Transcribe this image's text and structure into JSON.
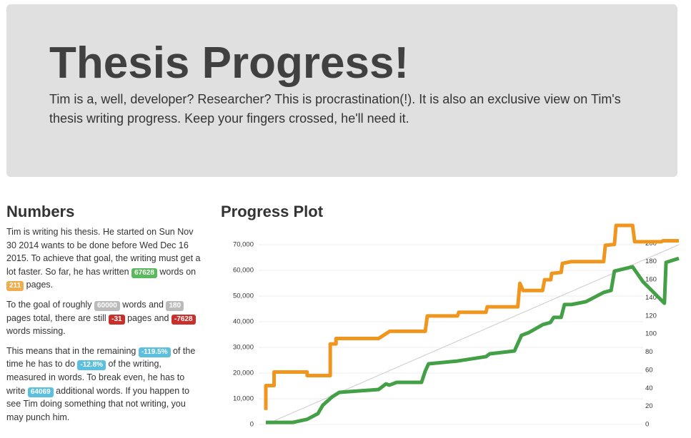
{
  "header": {
    "title": "Thesis Progress!",
    "text": "Tim is a, well, developer? Researcher? This is procrastination(!). It is also an exclusive view on Tim's thesis writing progress. Keep your fingers crossed, he'll need it."
  },
  "numbers": {
    "heading": "Numbers",
    "paragraphs": [
      {
        "parts": [
          "Tim is writing his thesis. He started on Sun Nov 30 2014 wants to be done before Wed Dec 16 2015. To achieve that goal, the writing must get a lot faster. So far, he has written ",
          {
            "badge": "67628",
            "color": "#5cb85c"
          },
          " words on ",
          {
            "badge": "211",
            "color": "#f0ad4e"
          },
          " pages."
        ]
      },
      {
        "parts": [
          "To the goal of roughly ",
          {
            "badge": "60000",
            "color": "#bbbbbb"
          },
          " words and ",
          {
            "badge": "180",
            "color": "#bbbbbb"
          },
          " pages total, there are still ",
          {
            "badge": "-31",
            "color": "#c9302c"
          },
          " pages and ",
          {
            "badge": "-7628",
            "color": "#c9302c"
          },
          " words missing."
        ]
      },
      {
        "parts": [
          "This means that in the remaining ",
          {
            "badge": "-119.5%",
            "color": "#5bc0de"
          },
          " of the time he has to do ",
          {
            "badge": "-12.8%",
            "color": "#5bc0de"
          },
          " of the writing, measured in words. To break even, he has to write ",
          {
            "badge": "64069",
            "color": "#5bc0de"
          },
          " additional words. If you happen to see Tim doing something that not writing, you may punch him."
        ]
      }
    ]
  },
  "plot": {
    "heading": "Progress Plot",
    "chart_data": {
      "type": "line",
      "grid": true,
      "xlim": [
        0,
        100
      ],
      "ylim": [
        0,
        77500
      ],
      "y2lim": [
        0,
        220
      ],
      "yticks": [
        0,
        {
          "value": 10000,
          "label": "10,000"
        },
        {
          "value": 20000,
          "label": "20,000"
        },
        {
          "value": 30000,
          "label": "30,000"
        },
        {
          "value": 40000,
          "label": "40,000"
        },
        {
          "value": 50000,
          "label": "50,000"
        },
        {
          "value": 60000,
          "label": "60,000"
        },
        {
          "value": 70000,
          "label": "70,000"
        }
      ],
      "y2ticks": [
        0,
        20,
        40,
        60,
        80,
        100,
        120,
        140,
        160,
        180,
        200
      ],
      "series": [
        {
          "color": "#cccccc",
          "width": 1,
          "x": [
            0,
            100
          ],
          "values": [
            0,
            70000
          ]
        },
        {
          "color": "#f0961e",
          "width": 5,
          "axis": "y2",
          "x": [
            0,
            0,
            2,
            2,
            10,
            10,
            15.6,
            15.6,
            17,
            17,
            27.3,
            30,
            38.6,
            39.1,
            46.4,
            46.7,
            53.3,
            53.6,
            61,
            61.5,
            62.3,
            67,
            67.5,
            69,
            69.2,
            71.5,
            71.8,
            74,
            81.8,
            82.2,
            84.4,
            84.8,
            88.8,
            89.3,
            95.7,
            96.2,
            100
          ],
          "values": [
            16,
            43,
            43,
            58,
            58,
            54,
            54,
            89,
            89,
            95,
            95,
            103,
            103,
            120,
            120,
            124,
            124,
            130,
            130,
            156,
            148,
            148,
            160,
            160,
            167,
            168,
            178,
            180,
            180,
            198,
            199,
            220,
            220,
            202,
            202,
            203,
            203
          ]
        },
        {
          "color": "#43a046",
          "width": 5,
          "x": [
            0,
            6.6,
            10,
            12.6,
            13.8,
            16.1,
            17.8,
            27.3,
            29.1,
            29.9,
            31.7,
            37.7,
            38.6,
            39.4,
            46.4,
            53.3,
            54.2,
            60.2,
            61.9,
            63.7,
            67.1,
            68.9,
            69.7,
            71.5,
            72.3,
            74,
            77.5,
            81.8,
            83.6,
            84.4,
            88.8,
            91.3,
            96.5,
            96.9,
            100
          ],
          "values": [
            800,
            800,
            2000,
            4200,
            7500,
            10800,
            12500,
            13600,
            15800,
            15300,
            16400,
            16400,
            20800,
            23600,
            24700,
            26400,
            27500,
            28600,
            34700,
            35800,
            38900,
            39700,
            41700,
            41700,
            46700,
            46700,
            47800,
            51400,
            52200,
            59700,
            61400,
            55600,
            47200,
            63100,
            64700
          ]
        }
      ]
    }
  }
}
